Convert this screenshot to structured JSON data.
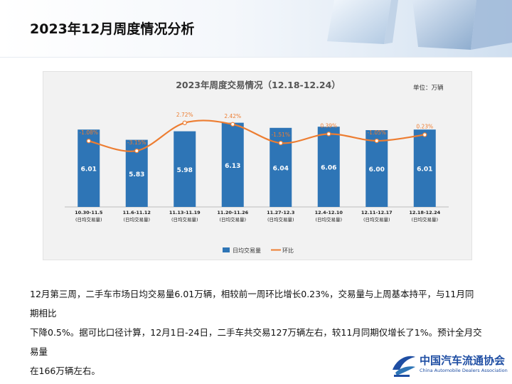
{
  "page": {
    "title": "2023年12月周度情况分析"
  },
  "chart_data": {
    "type": "bar",
    "title": "2023年周度交易情况（12.18-12.24）",
    "unit_label": "单位：万辆",
    "categories": [
      "10.30-11.5",
      "11.6-11.12",
      "11.13-11.19",
      "11.20-11.26",
      "11.27-12.3",
      "12.4-12.10",
      "12.11-12.17",
      "12.18-12.24"
    ],
    "category_sublabel": "(日均交易量)",
    "series": [
      {
        "name": "日均交易量",
        "type": "bar",
        "color": "#2e75b6",
        "values": [
          6.01,
          5.83,
          5.98,
          6.13,
          6.04,
          6.06,
          6.0,
          6.01
        ],
        "labels": [
          "6.01",
          "5.83",
          "5.98",
          "6.13",
          "6.04",
          "6.06",
          "6.00",
          "6.01"
        ]
      },
      {
        "name": "环比",
        "type": "line",
        "color": "#ed7d31",
        "values": [
          -1.08,
          -3.15,
          2.72,
          2.42,
          -1.51,
          0.39,
          -1.05,
          0.23
        ],
        "labels": [
          "-1.08%",
          "-3.15%",
          "2.72%",
          "2.42%",
          "-1.51%",
          "0.39%",
          "-1.05%",
          "0.23%"
        ]
      }
    ],
    "legend_position": "bottom"
  },
  "body": {
    "line1": "12月第三周，二手车市场日均交易量6.01万辆，相较前一周环比增长0.23%，交易量与上周基本持平，与11月同期相比",
    "line2": "下降0.5%。据可比口径计算，12月1日-24日，二手车共交易127万辆左右，较11月同期仅增长了1%。预计全月交易量",
    "line3": "在166万辆左右。"
  },
  "logo": {
    "name_cn": "中国汽车流通协会",
    "name_en": "China Automobile Dealers Association",
    "icon": "cada-logo-icon"
  }
}
